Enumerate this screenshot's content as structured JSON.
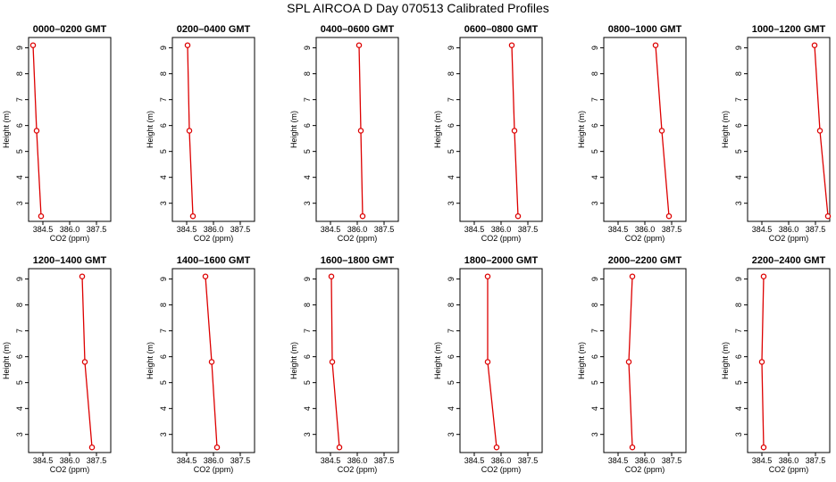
{
  "title": "SPL AIRCOA D  Day 070513  Calibrated Profiles",
  "colors": {
    "series": "#dd0000",
    "axis": "#000000"
  },
  "chart_data": [
    {
      "type": "line",
      "title": "0000–0200 GMT",
      "xlabel": "CO2 (ppm)",
      "ylabel": "Height (m)",
      "xlim": [
        383.7,
        388.3
      ],
      "ylim": [
        2.3,
        9.4
      ],
      "xticks": [
        "384.5",
        "386.0",
        "387.5"
      ],
      "yticks": [
        "3",
        "4",
        "5",
        "6",
        "7",
        "8",
        "9"
      ],
      "grid": false,
      "series": [
        {
          "x": [
            383.95,
            384.15,
            384.4
          ],
          "y": [
            9.1,
            5.8,
            2.5
          ]
        }
      ]
    },
    {
      "type": "line",
      "title": "0200–0400 GMT",
      "xlabel": "CO2 (ppm)",
      "ylabel": "Height (m)",
      "xlim": [
        383.7,
        388.3
      ],
      "ylim": [
        2.3,
        9.4
      ],
      "xticks": [
        "384.5",
        "386.0",
        "387.5"
      ],
      "yticks": [
        "3",
        "4",
        "5",
        "6",
        "7",
        "8",
        "9"
      ],
      "grid": false,
      "series": [
        {
          "x": [
            384.55,
            384.65,
            384.85
          ],
          "y": [
            9.1,
            5.8,
            2.5
          ]
        }
      ]
    },
    {
      "type": "line",
      "title": "0400–0600 GMT",
      "xlabel": "CO2 (ppm)",
      "ylabel": "Height (m)",
      "xlim": [
        383.7,
        388.3
      ],
      "ylim": [
        2.3,
        9.4
      ],
      "xticks": [
        "384.5",
        "386.0",
        "387.5"
      ],
      "yticks": [
        "3",
        "4",
        "5",
        "6",
        "7",
        "8",
        "9"
      ],
      "grid": false,
      "series": [
        {
          "x": [
            386.1,
            386.2,
            386.3
          ],
          "y": [
            9.1,
            5.8,
            2.5
          ]
        }
      ]
    },
    {
      "type": "line",
      "title": "0600–0800 GMT",
      "xlabel": "CO2 (ppm)",
      "ylabel": "Height (m)",
      "xlim": [
        383.7,
        388.3
      ],
      "ylim": [
        2.3,
        9.4
      ],
      "xticks": [
        "384.5",
        "386.0",
        "387.5"
      ],
      "yticks": [
        "3",
        "4",
        "5",
        "6",
        "7",
        "8",
        "9"
      ],
      "grid": false,
      "series": [
        {
          "x": [
            386.6,
            386.75,
            386.95
          ],
          "y": [
            9.1,
            5.8,
            2.5
          ]
        }
      ]
    },
    {
      "type": "line",
      "title": "0800–1000 GMT",
      "xlabel": "CO2 (ppm)",
      "ylabel": "Height (m)",
      "xlim": [
        383.7,
        388.3
      ],
      "ylim": [
        2.3,
        9.4
      ],
      "xticks": [
        "384.5",
        "386.0",
        "387.5"
      ],
      "yticks": [
        "3",
        "4",
        "5",
        "6",
        "7",
        "8",
        "9"
      ],
      "grid": false,
      "series": [
        {
          "x": [
            386.6,
            386.95,
            387.35
          ],
          "y": [
            9.1,
            5.8,
            2.5
          ]
        }
      ]
    },
    {
      "type": "line",
      "title": "1000–1200 GMT",
      "xlabel": "CO2 (ppm)",
      "ylabel": "Height (m)",
      "xlim": [
        383.7,
        388.3
      ],
      "ylim": [
        2.3,
        9.4
      ],
      "xticks": [
        "384.5",
        "386.0",
        "387.5"
      ],
      "yticks": [
        "3",
        "4",
        "5",
        "6",
        "7",
        "8",
        "9"
      ],
      "grid": false,
      "series": [
        {
          "x": [
            387.45,
            387.75,
            388.2
          ],
          "y": [
            9.1,
            5.8,
            2.5
          ]
        }
      ]
    },
    {
      "type": "line",
      "title": "1200–1400 GMT",
      "xlabel": "CO2 (ppm)",
      "ylabel": "Height (m)",
      "xlim": [
        383.7,
        388.3
      ],
      "ylim": [
        2.3,
        9.4
      ],
      "xticks": [
        "384.5",
        "386.0",
        "387.5"
      ],
      "yticks": [
        "3",
        "4",
        "5",
        "6",
        "7",
        "8",
        "9"
      ],
      "grid": false,
      "series": [
        {
          "x": [
            386.7,
            386.85,
            387.25
          ],
          "y": [
            9.1,
            5.8,
            2.5
          ]
        }
      ]
    },
    {
      "type": "line",
      "title": "1400–1600 GMT",
      "xlabel": "CO2 (ppm)",
      "ylabel": "Height (m)",
      "xlim": [
        383.7,
        388.3
      ],
      "ylim": [
        2.3,
        9.4
      ],
      "xticks": [
        "384.5",
        "386.0",
        "387.5"
      ],
      "yticks": [
        "3",
        "4",
        "5",
        "6",
        "7",
        "8",
        "9"
      ],
      "grid": false,
      "series": [
        {
          "x": [
            385.55,
            385.9,
            386.2
          ],
          "y": [
            9.1,
            5.8,
            2.5
          ]
        }
      ]
    },
    {
      "type": "line",
      "title": "1600–1800 GMT",
      "xlabel": "CO2 (ppm)",
      "ylabel": "Height (m)",
      "xlim": [
        383.7,
        388.3
      ],
      "ylim": [
        2.3,
        9.4
      ],
      "xticks": [
        "384.5",
        "386.0",
        "387.5"
      ],
      "yticks": [
        "3",
        "4",
        "5",
        "6",
        "7",
        "8",
        "9"
      ],
      "grid": false,
      "series": [
        {
          "x": [
            384.55,
            384.6,
            385.0
          ],
          "y": [
            9.1,
            5.8,
            2.5
          ]
        }
      ]
    },
    {
      "type": "line",
      "title": "1800–2000 GMT",
      "xlabel": "CO2 (ppm)",
      "ylabel": "Height (m)",
      "xlim": [
        383.7,
        388.3
      ],
      "ylim": [
        2.3,
        9.4
      ],
      "xticks": [
        "384.5",
        "386.0",
        "387.5"
      ],
      "yticks": [
        "3",
        "4",
        "5",
        "6",
        "7",
        "8",
        "9"
      ],
      "grid": false,
      "series": [
        {
          "x": [
            385.25,
            385.25,
            385.75
          ],
          "y": [
            9.1,
            5.8,
            2.5
          ]
        }
      ]
    },
    {
      "type": "line",
      "title": "2000–2200 GMT",
      "xlabel": "CO2 (ppm)",
      "ylabel": "Height (m)",
      "xlim": [
        383.7,
        388.3
      ],
      "ylim": [
        2.3,
        9.4
      ],
      "xticks": [
        "384.5",
        "386.0",
        "387.5"
      ],
      "yticks": [
        "3",
        "4",
        "5",
        "6",
        "7",
        "8",
        "9"
      ],
      "grid": false,
      "series": [
        {
          "x": [
            385.3,
            385.1,
            385.3
          ],
          "y": [
            9.1,
            5.8,
            2.5
          ]
        }
      ]
    },
    {
      "type": "line",
      "title": "2200–2400 GMT",
      "xlabel": "CO2 (ppm)",
      "ylabel": "Height (m)",
      "xlim": [
        383.7,
        388.3
      ],
      "ylim": [
        2.3,
        9.4
      ],
      "xticks": [
        "384.5",
        "386.0",
        "387.5"
      ],
      "yticks": [
        "3",
        "4",
        "5",
        "6",
        "7",
        "8",
        "9"
      ],
      "grid": false,
      "series": [
        {
          "x": [
            384.6,
            384.5,
            384.6
          ],
          "y": [
            9.1,
            5.8,
            2.5
          ]
        }
      ]
    }
  ]
}
